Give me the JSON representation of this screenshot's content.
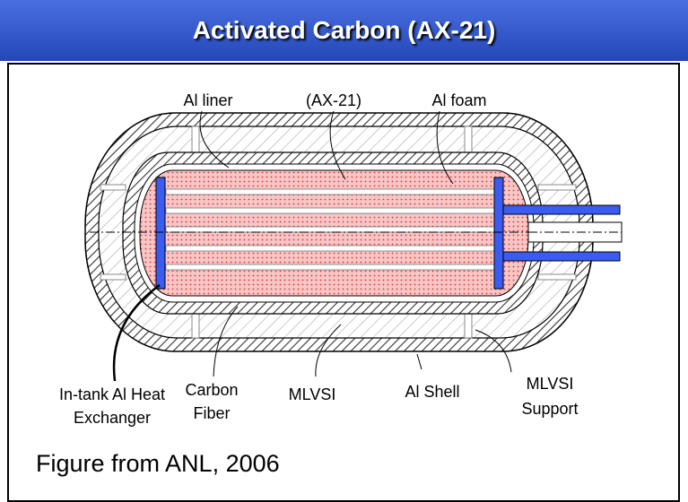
{
  "header": {
    "title": "Activated Carbon (AX-21)"
  },
  "callouts": [
    [
      "Al liner"
    ],
    [
      "(AX-21)"
    ],
    [
      "Al foam"
    ],
    [
      "In-tank Al Heat",
      "Exchanger"
    ],
    [
      "Carbon",
      "Fiber"
    ],
    [
      "MLVSI"
    ],
    [
      "Al Shell"
    ],
    [
      "MLVSI",
      "Support"
    ]
  ],
  "caption": "Figure from ANL, 2006"
}
